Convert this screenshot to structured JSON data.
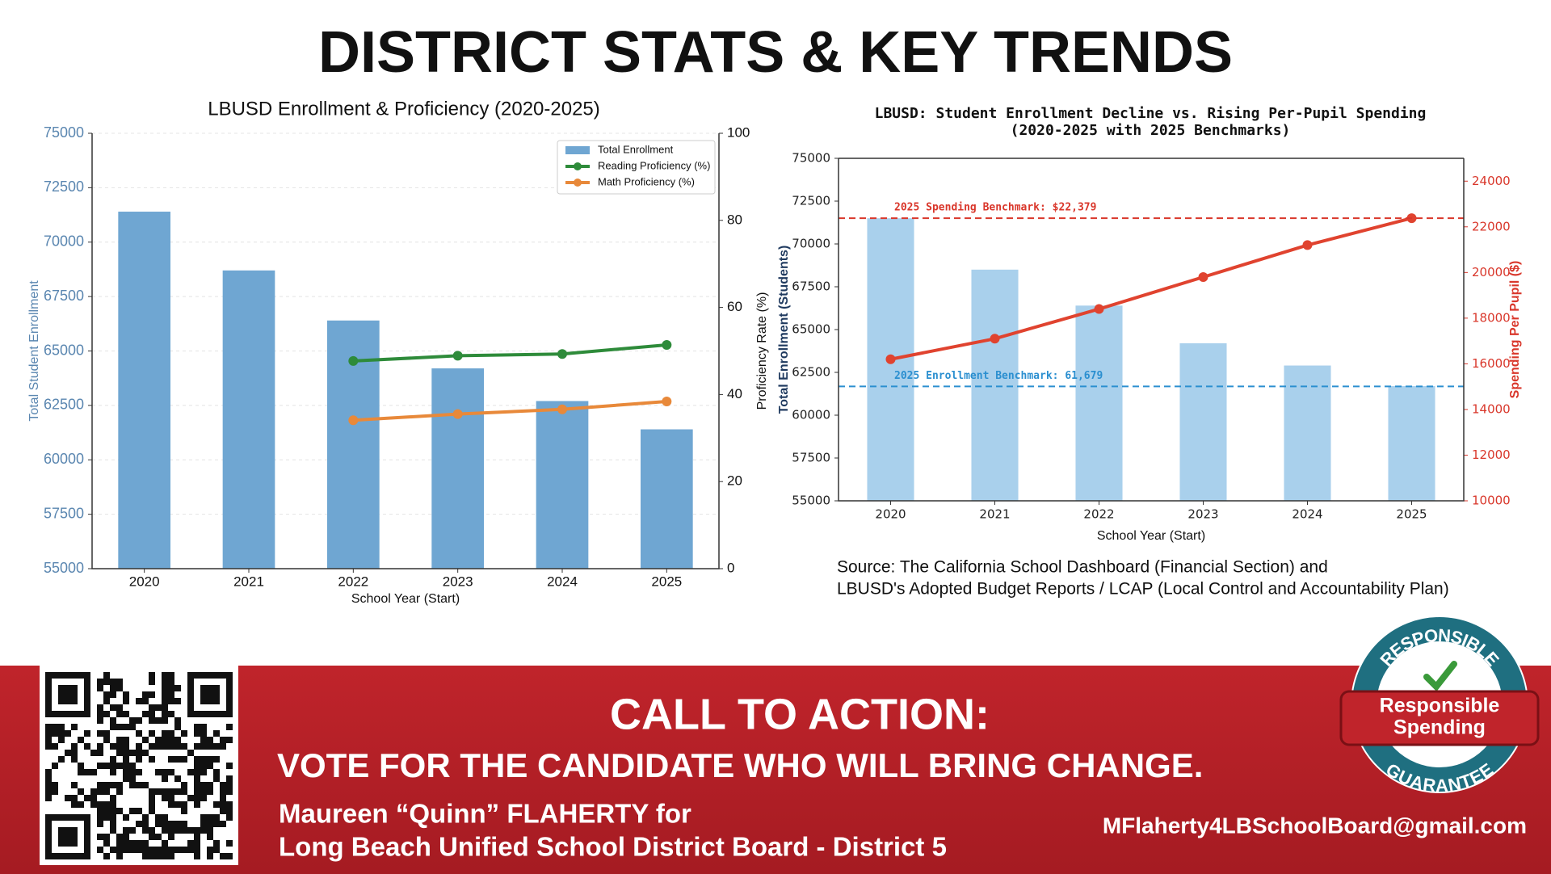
{
  "header": {
    "title": "DISTRICT STATS & KEY TRENDS"
  },
  "chart_data": [
    {
      "type": "combo",
      "title": "LBUSD Enrollment & Proficiency (2020-2025)",
      "x_label": "School Year (Start)",
      "y_label": "Total Student Enrollment",
      "y2_label": "Proficiency Rate (%)",
      "categories": [
        "2020",
        "2021",
        "2022",
        "2023",
        "2024",
        "2025"
      ],
      "series": [
        {
          "name": "Total Enrollment",
          "type": "bar",
          "color": "#6fa6d2",
          "values": [
            71400,
            68700,
            66400,
            64200,
            62700,
            61400
          ]
        },
        {
          "name": "Reading Proficiency (%)",
          "type": "line",
          "axis": "y2",
          "color": "#2e8b3a",
          "values": [
            null,
            null,
            47.7,
            48.9,
            49.3,
            51.4
          ]
        },
        {
          "name": "Math Proficiency (%)",
          "type": "line",
          "axis": "y2",
          "color": "#e8893a",
          "values": [
            null,
            null,
            34.1,
            35.5,
            36.6,
            38.4
          ]
        }
      ],
      "ylim": [
        55000,
        75000
      ],
      "yticks": [
        55000,
        57500,
        60000,
        62500,
        65000,
        67500,
        70000,
        72500,
        75000
      ],
      "y2lim": [
        0,
        100
      ],
      "y2ticks": [
        0,
        20,
        40,
        60,
        80,
        100
      ],
      "grid": true,
      "legend": "upper right"
    },
    {
      "type": "combo",
      "title": "LBUSD: Student Enrollment Decline vs. Rising Per-Pupil Spending",
      "subtitle": "(2020-2025 with 2025 Benchmarks)",
      "x_label": "School Year (Start)",
      "y_label": "Total Enrollment (Students)",
      "y2_label": "Spending Per Pupil ($)",
      "categories": [
        "2020",
        "2021",
        "2022",
        "2023",
        "2024",
        "2025"
      ],
      "series": [
        {
          "type": "bar",
          "color": "#a9d0ec",
          "values": [
            71500,
            68500,
            66400,
            64200,
            62900,
            61700
          ]
        },
        {
          "type": "line",
          "axis": "y2",
          "color": "#e0432f",
          "values": [
            16200,
            17100,
            18400,
            19800,
            21200,
            22379
          ]
        }
      ],
      "ylim": [
        55000,
        75000
      ],
      "yticks": [
        55000,
        57500,
        60000,
        62500,
        65000,
        67500,
        70000,
        72500,
        75000
      ],
      "y2lim": [
        10000,
        25000
      ],
      "y2ticks": [
        10000,
        12000,
        14000,
        16000,
        18000,
        20000,
        22000,
        24000
      ],
      "grid": false,
      "reference_lines": [
        {
          "value": 22379,
          "axis": "y2",
          "color": "#d9372b",
          "label": "2025 Spending Benchmark: $22,379"
        },
        {
          "value": 61679,
          "axis": "y",
          "color": "#2b8fd0",
          "label": "2025 Enrollment Benchmark: 61,679"
        }
      ],
      "source": [
        "Source: The California School Dashboard (Financial Section) and",
        "LBUSD's Adopted Budget Reports / LCAP (Local Control and Accountability Plan)"
      ]
    }
  ],
  "footer": {
    "heading": "CALL TO ACTION:",
    "slogan": "VOTE FOR THE CANDIDATE WHO WILL BRING CHANGE.",
    "candidate": [
      "Maureen “Quinn” FLAHERTY for",
      "Long Beach Unified School District Board - District 5"
    ],
    "email": "MFlaherty4LBSchoolBoard@gmail.com",
    "badge": {
      "top": "RESPONSIBLE",
      "ribbon": [
        "Responsible",
        "Spending"
      ],
      "bottom": "GUARANTEE"
    }
  }
}
